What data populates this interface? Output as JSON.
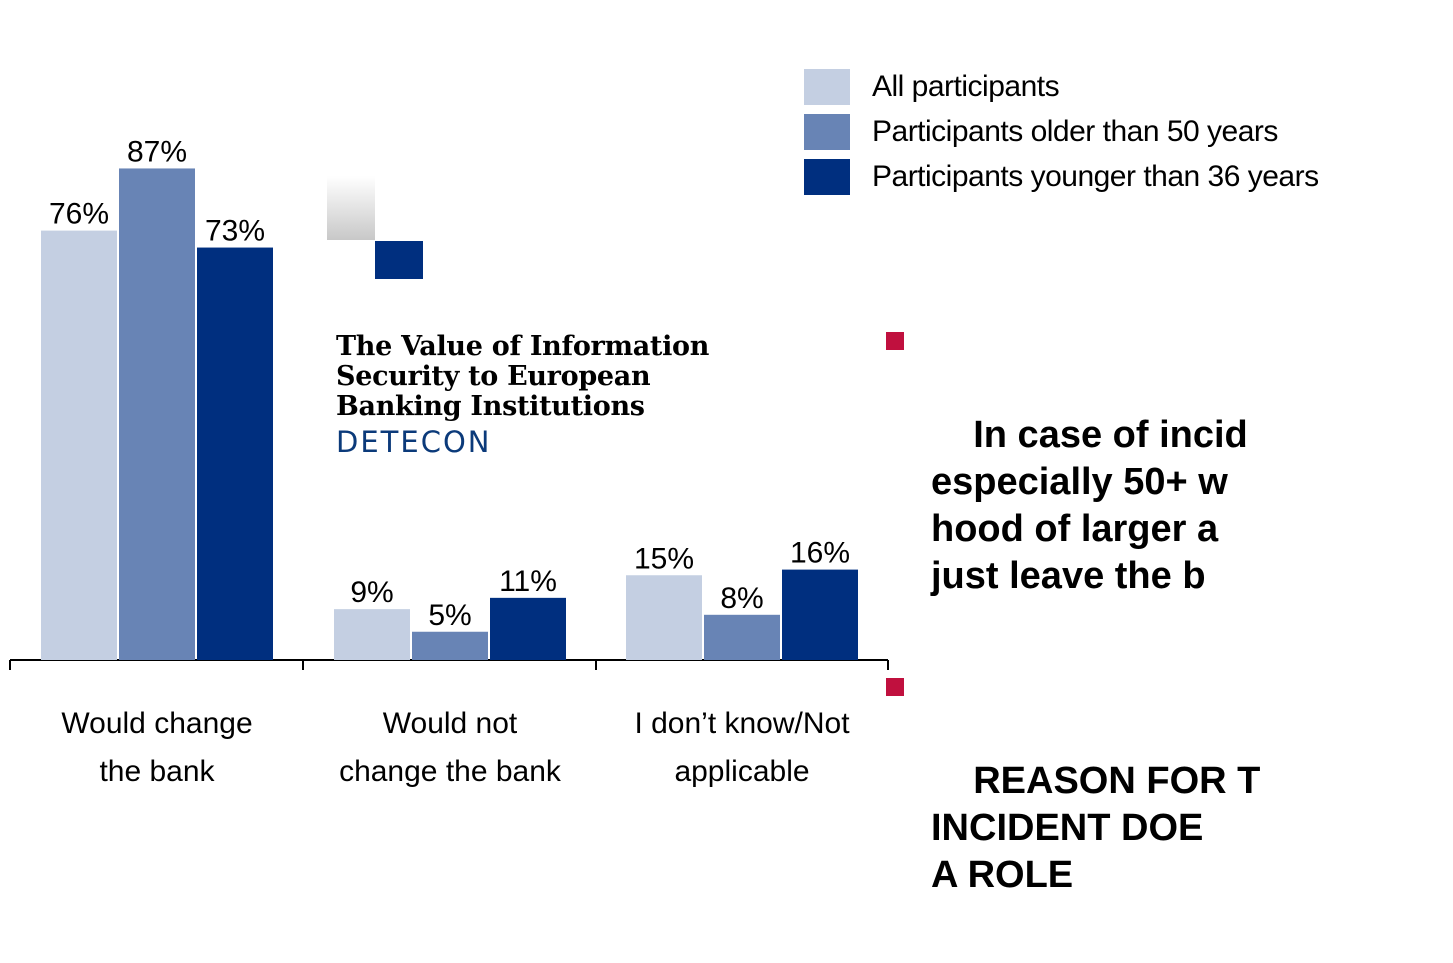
{
  "chart_data": {
    "type": "bar",
    "categories": [
      "Would change\nthe bank",
      "Would not\nchange the bank",
      "I don’t know/Not\napplicable"
    ],
    "series": [
      {
        "name": "All participants",
        "values": [
          76,
          9,
          15
        ],
        "labels": [
          "76%",
          "9%",
          "15%"
        ],
        "color": "#c4cfe2"
      },
      {
        "name": "Participants older than 50 years",
        "values": [
          87,
          5,
          8
        ],
        "labels": [
          "87%",
          "5%",
          "8%"
        ],
        "color": "#6884b5"
      },
      {
        "name": "Participants younger than 36 years",
        "values": [
          73,
          11,
          16
        ],
        "labels": [
          "73%",
          "11%",
          "16%"
        ],
        "color": "#002f7f"
      }
    ],
    "ylim": [
      0,
      100
    ],
    "grid": false,
    "legend_position": "top-right"
  },
  "logo": {
    "title": "The Value of Information\nSecurity to European\nBanking Institutions",
    "brand": "DETECON"
  },
  "bullets": [
    {
      "text": "In case of incid\nespecially 50+ w\nhood of larger a\njust leave the b"
    },
    {
      "text": "REASON FOR T\nINCIDENT DOE\nA ROLE"
    }
  ],
  "colors": {
    "bullet": "#c0103e",
    "axis": "#000000"
  }
}
